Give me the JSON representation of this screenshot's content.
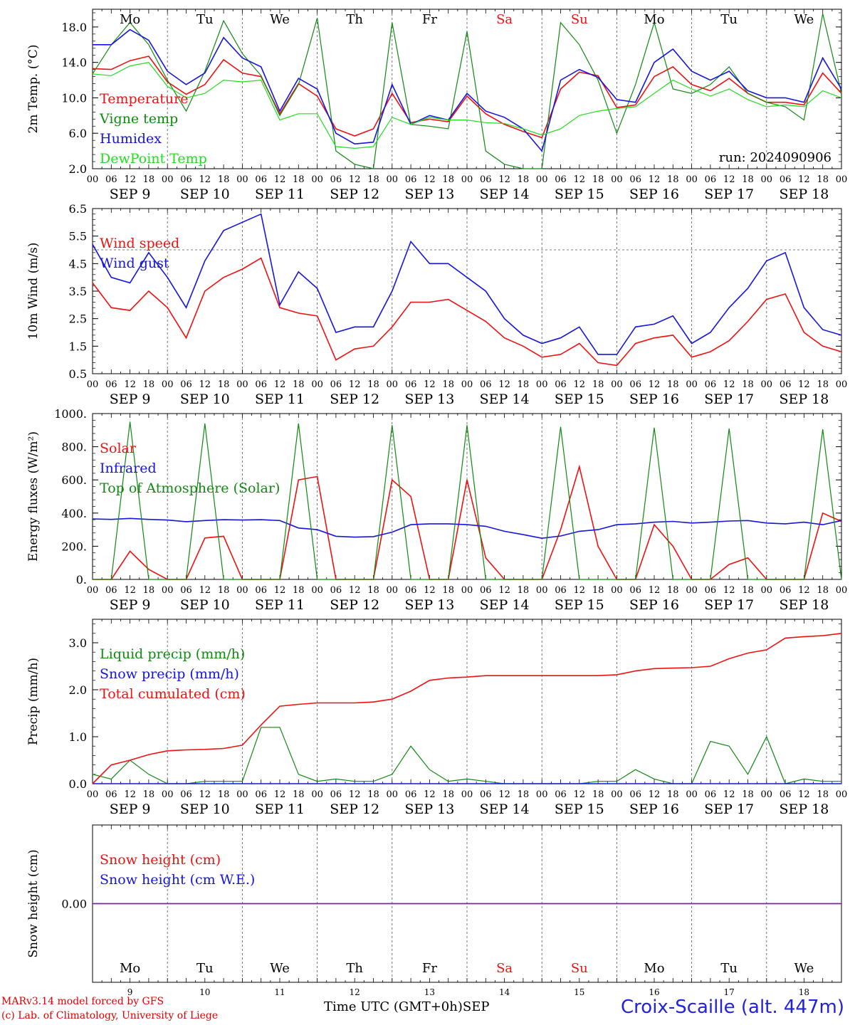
{
  "colors": {
    "red": "#ee1111",
    "green": "#118811",
    "blue": "#1515dd",
    "light_green": "#22dd22",
    "purple": "#7722aa",
    "grid": "#555555"
  },
  "day_names": [
    "Mo",
    "Tu",
    "We",
    "Th",
    "Fr",
    "Sa",
    "Su",
    "Mo",
    "Tu",
    "We"
  ],
  "weekend_days": [
    5,
    6
  ],
  "date_labels": [
    "SEP  9",
    "SEP 10",
    "SEP 11",
    "SEP 12",
    "SEP 13",
    "SEP 14",
    "SEP 15",
    "SEP 16",
    "SEP 17",
    "SEP 18"
  ],
  "hour_labels": [
    "00",
    "06",
    "12",
    "18"
  ],
  "day_numbers": [
    "9",
    "10",
    "11",
    "12",
    "13",
    "14",
    "15",
    "16",
    "17",
    "18"
  ],
  "month_label": "SEP",
  "footer": {
    "credit1": "MARv3.14 model forced by GFS",
    "credit2": "(c) Lab. of Climatology, University of Liege",
    "time_axis": "Time UTC (GMT+0h)",
    "station": "Croix-Scaille (alt. 447m)"
  },
  "chart_data": [
    {
      "type": "line",
      "ylabel": "2m Temp. (°C)",
      "ylim": [
        2.0,
        20.0
      ],
      "yticks": [
        2.0,
        6.0,
        10.0,
        14.0,
        18.0
      ],
      "ytick_labels": [
        "2.0",
        "6.0",
        "10.0",
        "14.0",
        "18.0"
      ],
      "annotation": "run: 2024090906",
      "x_hours": [
        0,
        6,
        12,
        18,
        24,
        30,
        36,
        42,
        48,
        54,
        60,
        66,
        72,
        78,
        84,
        90,
        96,
        102,
        108,
        114,
        120,
        126,
        132,
        138,
        144,
        150,
        156,
        162,
        168,
        174,
        180,
        186,
        192,
        198,
        204,
        210,
        216,
        222,
        228,
        234,
        240
      ],
      "series": [
        {
          "name": "Temperature",
          "color": "red",
          "values": [
            13.3,
            13.2,
            14.2,
            14.7,
            11.8,
            10.4,
            11.5,
            14.3,
            12.8,
            12.4,
            8.2,
            11.6,
            10.2,
            6.5,
            5.7,
            6.5,
            10.5,
            7.2,
            7.6,
            7.3,
            10.2,
            8.2,
            7.0,
            6.2,
            5.5,
            11.0,
            12.9,
            12.5,
            8.9,
            9.2,
            12.4,
            13.5,
            11.5,
            10.8,
            12.2,
            10.5,
            9.5,
            9.5,
            9.2,
            12.8,
            10.5
          ]
        },
        {
          "name": "Vigne temp",
          "color": "green",
          "values": [
            12.7,
            16.0,
            18.5,
            16.0,
            12.0,
            8.5,
            13.0,
            18.7,
            15.0,
            12.5,
            8.0,
            11.5,
            19.0,
            4.0,
            2.5,
            2.0,
            18.5,
            7.0,
            6.8,
            6.5,
            17.5,
            4.0,
            2.5,
            1.5,
            1.5,
            18.5,
            16.0,
            12.0,
            6.0,
            11.5,
            18.5,
            11.0,
            10.5,
            11.5,
            13.5,
            10.5,
            9.5,
            9.0,
            7.5,
            19.5,
            10.5
          ]
        },
        {
          "name": "Humidex",
          "color": "blue",
          "values": [
            16.0,
            16.0,
            17.7,
            16.5,
            13.0,
            11.5,
            12.8,
            16.8,
            14.5,
            13.5,
            8.5,
            12.2,
            11.0,
            6.0,
            4.8,
            5.0,
            11.5,
            7.0,
            8.0,
            7.5,
            10.5,
            8.5,
            7.8,
            6.5,
            4.0,
            12.0,
            13.2,
            12.3,
            9.8,
            9.5,
            14.0,
            15.5,
            13.0,
            12.0,
            13.0,
            10.8,
            10.0,
            10.0,
            9.5,
            14.5,
            11.0
          ]
        },
        {
          "name": "DewPoint Temp",
          "color": "light_green",
          "values": [
            12.7,
            12.5,
            13.6,
            14.0,
            11.3,
            10.0,
            10.5,
            12.0,
            11.8,
            12.0,
            7.5,
            8.2,
            8.2,
            4.5,
            4.3,
            4.5,
            7.8,
            7.0,
            7.8,
            7.5,
            7.5,
            7.2,
            7.1,
            6.5,
            5.8,
            6.5,
            8.0,
            8.5,
            8.8,
            9.0,
            10.5,
            12.0,
            11.0,
            10.2,
            11.0,
            9.8,
            9.0,
            9.2,
            9.0,
            10.8,
            10.0
          ]
        }
      ]
    },
    {
      "type": "line",
      "ylabel": "10m Wind (m/s)",
      "ylim": [
        0.5,
        6.5
      ],
      "yticks": [
        0.5,
        1.5,
        2.5,
        3.5,
        4.5,
        5.5,
        6.5
      ],
      "ytick_labels": [
        "0.5",
        "1.5",
        "2.5",
        "3.5",
        "4.5",
        "5.5",
        "6.5"
      ],
      "reference_line": 5.0,
      "x_hours": [
        0,
        6,
        12,
        18,
        24,
        30,
        36,
        42,
        48,
        54,
        60,
        66,
        72,
        78,
        84,
        90,
        96,
        102,
        108,
        114,
        120,
        126,
        132,
        138,
        144,
        150,
        156,
        162,
        168,
        174,
        180,
        186,
        192,
        198,
        204,
        210,
        216,
        222,
        228,
        234,
        240
      ],
      "series": [
        {
          "name": "Wind speed",
          "color": "red",
          "values": [
            3.8,
            2.9,
            2.8,
            3.5,
            2.9,
            1.8,
            3.5,
            4.0,
            4.3,
            4.7,
            2.9,
            2.7,
            2.6,
            1.0,
            1.4,
            1.5,
            2.2,
            3.1,
            3.1,
            3.2,
            2.8,
            2.4,
            1.8,
            1.5,
            1.1,
            1.2,
            1.6,
            0.9,
            0.8,
            1.6,
            1.8,
            1.9,
            1.1,
            1.3,
            1.7,
            2.4,
            3.2,
            3.4,
            2.0,
            1.5,
            1.3
          ]
        },
        {
          "name": "Wind gust",
          "color": "blue",
          "values": [
            5.2,
            4.0,
            3.8,
            4.9,
            4.0,
            2.9,
            4.6,
            5.7,
            6.0,
            6.3,
            3.0,
            4.2,
            3.6,
            2.0,
            2.2,
            2.2,
            3.5,
            5.3,
            4.5,
            4.5,
            4.0,
            3.5,
            2.5,
            1.9,
            1.6,
            1.8,
            2.2,
            1.2,
            1.2,
            2.2,
            2.3,
            2.6,
            1.6,
            2.0,
            2.9,
            3.6,
            4.6,
            4.9,
            2.9,
            2.1,
            1.9
          ]
        }
      ]
    },
    {
      "type": "line",
      "ylabel": "Energy fluxes (W/m²)",
      "ylim": [
        0,
        1000
      ],
      "yticks": [
        0,
        200,
        400,
        600,
        800,
        1000
      ],
      "ytick_labels": [
        "0.",
        "200.",
        "400.",
        "600.",
        "800.",
        "1000."
      ],
      "x_hours": [
        0,
        6,
        12,
        18,
        24,
        30,
        36,
        42,
        48,
        54,
        60,
        66,
        72,
        78,
        84,
        90,
        96,
        102,
        108,
        114,
        120,
        126,
        132,
        138,
        144,
        150,
        156,
        162,
        168,
        174,
        180,
        186,
        192,
        198,
        204,
        210,
        216,
        222,
        228,
        234,
        240
      ],
      "series": [
        {
          "name": "Solar",
          "color": "red",
          "values": [
            0,
            0,
            170,
            60,
            0,
            0,
            250,
            260,
            0,
            0,
            0,
            600,
            620,
            0,
            0,
            0,
            600,
            500,
            0,
            0,
            600,
            130,
            0,
            0,
            0,
            300,
            680,
            200,
            0,
            0,
            330,
            200,
            0,
            0,
            90,
            130,
            0,
            0,
            0,
            400,
            350
          ]
        },
        {
          "name": "Infrared",
          "color": "blue",
          "values": [
            365,
            362,
            368,
            362,
            358,
            348,
            355,
            360,
            358,
            360,
            355,
            310,
            300,
            260,
            255,
            258,
            285,
            330,
            335,
            335,
            330,
            320,
            290,
            270,
            248,
            262,
            290,
            300,
            330,
            335,
            345,
            350,
            340,
            345,
            352,
            355,
            340,
            335,
            345,
            330,
            355
          ]
        },
        {
          "name": "Top of Atmosphere (Solar)",
          "color": "green",
          "values": [
            0,
            0,
            950,
            0,
            0,
            0,
            940,
            0,
            0,
            0,
            0,
            940,
            0,
            0,
            0,
            0,
            930,
            0,
            0,
            0,
            930,
            0,
            0,
            0,
            0,
            920,
            0,
            0,
            0,
            0,
            915,
            0,
            0,
            0,
            910,
            0,
            0,
            0,
            0,
            905,
            0
          ]
        }
      ]
    },
    {
      "type": "line",
      "ylabel": "Precip (mm/h)",
      "ylim": [
        0.0,
        3.5
      ],
      "yticks": [
        0.0,
        1.0,
        2.0,
        3.0
      ],
      "ytick_labels": [
        "0.0",
        "1.0",
        "2.0",
        "3.0"
      ],
      "x_hours": [
        0,
        6,
        12,
        18,
        24,
        30,
        36,
        42,
        48,
        54,
        60,
        66,
        72,
        78,
        84,
        90,
        96,
        102,
        108,
        114,
        120,
        126,
        132,
        138,
        144,
        150,
        156,
        162,
        168,
        174,
        180,
        186,
        192,
        198,
        204,
        210,
        216,
        222,
        228,
        234,
        240
      ],
      "series": [
        {
          "name": "Liquid precip (mm/h)",
          "color": "green",
          "values": [
            0.2,
            0.1,
            0.5,
            0.2,
            0.0,
            0.0,
            0.05,
            0.05,
            0.05,
            1.2,
            1.2,
            0.2,
            0.05,
            0.1,
            0.05,
            0.05,
            0.2,
            0.8,
            0.3,
            0.05,
            0.1,
            0.05,
            0.0,
            0.0,
            0.0,
            0.0,
            0.0,
            0.05,
            0.05,
            0.3,
            0.1,
            0.0,
            0.0,
            0.9,
            0.8,
            0.2,
            1.0,
            0.0,
            0.1,
            0.05,
            0.05
          ]
        },
        {
          "name": "Snow precip (mm/h)",
          "color": "blue",
          "values": [
            0,
            0,
            0,
            0,
            0,
            0,
            0,
            0,
            0,
            0,
            0,
            0,
            0,
            0,
            0,
            0,
            0,
            0,
            0,
            0,
            0,
            0,
            0,
            0,
            0,
            0,
            0,
            0,
            0,
            0,
            0,
            0,
            0,
            0,
            0,
            0,
            0,
            0,
            0,
            0,
            0
          ]
        },
        {
          "name": "Total cumulated (cm)",
          "color": "red",
          "values": [
            0.0,
            0.4,
            0.5,
            0.62,
            0.7,
            0.72,
            0.73,
            0.75,
            0.82,
            1.25,
            1.65,
            1.69,
            1.72,
            1.72,
            1.72,
            1.74,
            1.8,
            1.97,
            2.2,
            2.25,
            2.27,
            2.3,
            2.3,
            2.3,
            2.3,
            2.3,
            2.3,
            2.3,
            2.32,
            2.4,
            2.45,
            2.46,
            2.47,
            2.5,
            2.66,
            2.78,
            2.85,
            3.1,
            3.13,
            3.15,
            3.2
          ]
        }
      ]
    },
    {
      "type": "line",
      "ylabel": "Snow height (cm)",
      "ylim": [
        -1.0,
        1.0
      ],
      "yticks": [
        0.0
      ],
      "ytick_labels": [
        "0.00"
      ],
      "x_hours": [
        0,
        240
      ],
      "series": [
        {
          "name": "Snow height (cm)",
          "color": "red",
          "values": [
            0.0,
            0.0
          ]
        },
        {
          "name": "Snow height (cm W.E.)",
          "color": "blue",
          "values": [
            0.0,
            0.0
          ]
        }
      ]
    }
  ]
}
